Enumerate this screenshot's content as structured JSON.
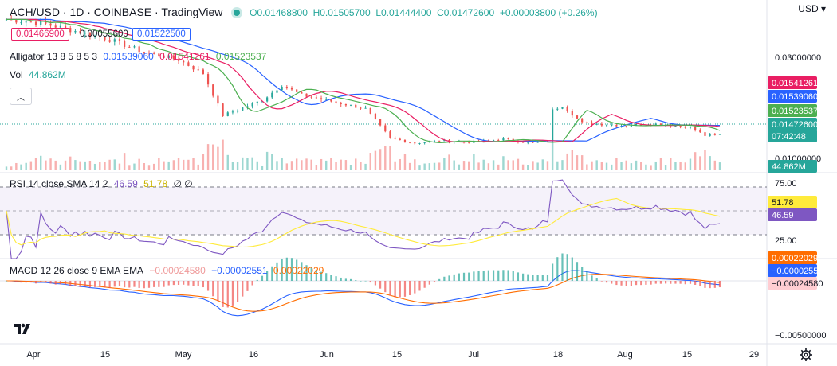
{
  "header": {
    "symbol": "ACH/USD · 1D · COINBASE · TradingView",
    "open": "O0.01468800",
    "high": "H0.01505700",
    "low": "L0.01444400",
    "close": "C0.01472600",
    "change": "+0.00003800 (+0.26%)",
    "currency": "USD",
    "currency_caret": "▾",
    "tag_price_a": "0.01466900",
    "tag_diff": "0.00055600",
    "tag_price_b": "0.01522500"
  },
  "legends": {
    "alligator_label": "Alligator 13 8 5 8 5 3",
    "alligator_v1": "0.01539060",
    "alligator_v2": "0.01541261",
    "alligator_v3": "0.01523537",
    "vol_label": "Vol",
    "vol_value": "44.862M",
    "rsi_label": "RSI 14 close SMA 14 2",
    "rsi_v1": "46.59",
    "rsi_v2": "51.78",
    "rsi_v3": "∅ ∅",
    "macd_label": "MACD 12 26 close 9 EMA EMA",
    "macd_v1": "−0.00024580",
    "macd_v2": "−0.00002551",
    "macd_v3": "0.00022029"
  },
  "price_axis": {
    "ticks": [
      "0.03000000",
      "0.01000000"
    ],
    "labels": [
      {
        "text": "0.01541261",
        "bg": "#e91e63",
        "fg": "#ffffff"
      },
      {
        "text": "0.01539060",
        "bg": "#2962ff",
        "fg": "#ffffff"
      },
      {
        "text": "0.01523537",
        "bg": "#4caf50",
        "fg": "#ffffff"
      },
      {
        "text": "0.01472600",
        "bg": "#26a69a",
        "fg": "#ffffff"
      },
      {
        "text": "07:42:48",
        "bg": "#26a69a",
        "fg": "#ffffff"
      },
      {
        "text": "44.862M",
        "bg": "#26a69a",
        "fg": "#ffffff"
      }
    ]
  },
  "rsi_axis": {
    "ticks": [
      "75.00",
      "25.00"
    ],
    "labels": [
      {
        "text": "51.78",
        "bg": "#ffeb3b",
        "fg": "#131722"
      },
      {
        "text": "46.59",
        "bg": "#7e57c2",
        "fg": "#ffffff"
      }
    ]
  },
  "macd_axis": {
    "ticks": [
      "−0.00500000"
    ],
    "labels": [
      {
        "text": "0.00022029",
        "bg": "#ff6d00",
        "fg": "#ffffff"
      },
      {
        "text": "−0.00002551",
        "bg": "#2962ff",
        "fg": "#ffffff"
      },
      {
        "text": "−0.00024580",
        "bg": "#ffcdd2",
        "fg": "#131722"
      }
    ]
  },
  "time_axis": [
    "Apr",
    "15",
    "May",
    "16",
    "Jun",
    "15",
    "Jul",
    "18",
    "Aug",
    "15",
    "29"
  ],
  "colors": {
    "up": "#26a69a",
    "down": "#ef5350",
    "jaw": "#2962ff",
    "teeth": "#e91e63",
    "lips": "#4caf50",
    "rsi": "#7e57c2",
    "rsi_ma": "#ffeb3b",
    "macd": "#2962ff",
    "signal": "#ff6d00"
  },
  "chart_data": {
    "type": "candlestick",
    "symbol": "ACH/USD",
    "interval": "1D",
    "exchange": "COINBASE",
    "price_ticks": [
      0.03,
      0.01
    ],
    "rsi_ticks": [
      75,
      25
    ],
    "close_path": [
      {
        "date": "Mar 29",
        "close": 0.0375
      },
      {
        "date": "Apr 5",
        "close": 0.0368
      },
      {
        "date": "Apr 12",
        "close": 0.0352
      },
      {
        "date": "Apr 19",
        "close": 0.0335
      },
      {
        "date": "Apr 26",
        "close": 0.031
      },
      {
        "date": "May 3",
        "close": 0.0295
      },
      {
        "date": "May 8",
        "close": 0.0268
      },
      {
        "date": "May 12",
        "close": 0.0185
      },
      {
        "date": "May 16",
        "close": 0.02
      },
      {
        "date": "May 20",
        "close": 0.0215
      },
      {
        "date": "May 24",
        "close": 0.0245
      },
      {
        "date": "May 28",
        "close": 0.0225
      },
      {
        "date": "Jun 2",
        "close": 0.0215
      },
      {
        "date": "Jun 10",
        "close": 0.0198
      },
      {
        "date": "Jun 15",
        "close": 0.014
      },
      {
        "date": "Jun 20",
        "close": 0.013
      },
      {
        "date": "Jun 25",
        "close": 0.0135
      },
      {
        "date": "Jul 1",
        "close": 0.0132
      },
      {
        "date": "Jul 8",
        "close": 0.0138
      },
      {
        "date": "Jul 14",
        "close": 0.013
      },
      {
        "date": "Jul 17",
        "close": 0.0135
      },
      {
        "date": "Jul 18",
        "close": 0.0195
      },
      {
        "date": "Jul 20",
        "close": 0.0205
      },
      {
        "date": "Jul 24",
        "close": 0.017
      },
      {
        "date": "Aug 1",
        "close": 0.0165
      },
      {
        "date": "Aug 8",
        "close": 0.0168
      },
      {
        "date": "Aug 15",
        "close": 0.0162
      },
      {
        "date": "Aug 18",
        "close": 0.0145
      },
      {
        "date": "Aug 21",
        "close": 0.014726
      }
    ],
    "alligator": {
      "jaw": 0.0153906,
      "teeth": 0.01541261,
      "lips": 0.01523537
    },
    "volume_last": "44.862M",
    "rsi": {
      "value": 46.59,
      "sma": 51.78,
      "levels": [
        70,
        30
      ]
    },
    "macd": {
      "histogram": -0.0002458,
      "macd": -2.551e-05,
      "signal": 0.00022029
    }
  }
}
